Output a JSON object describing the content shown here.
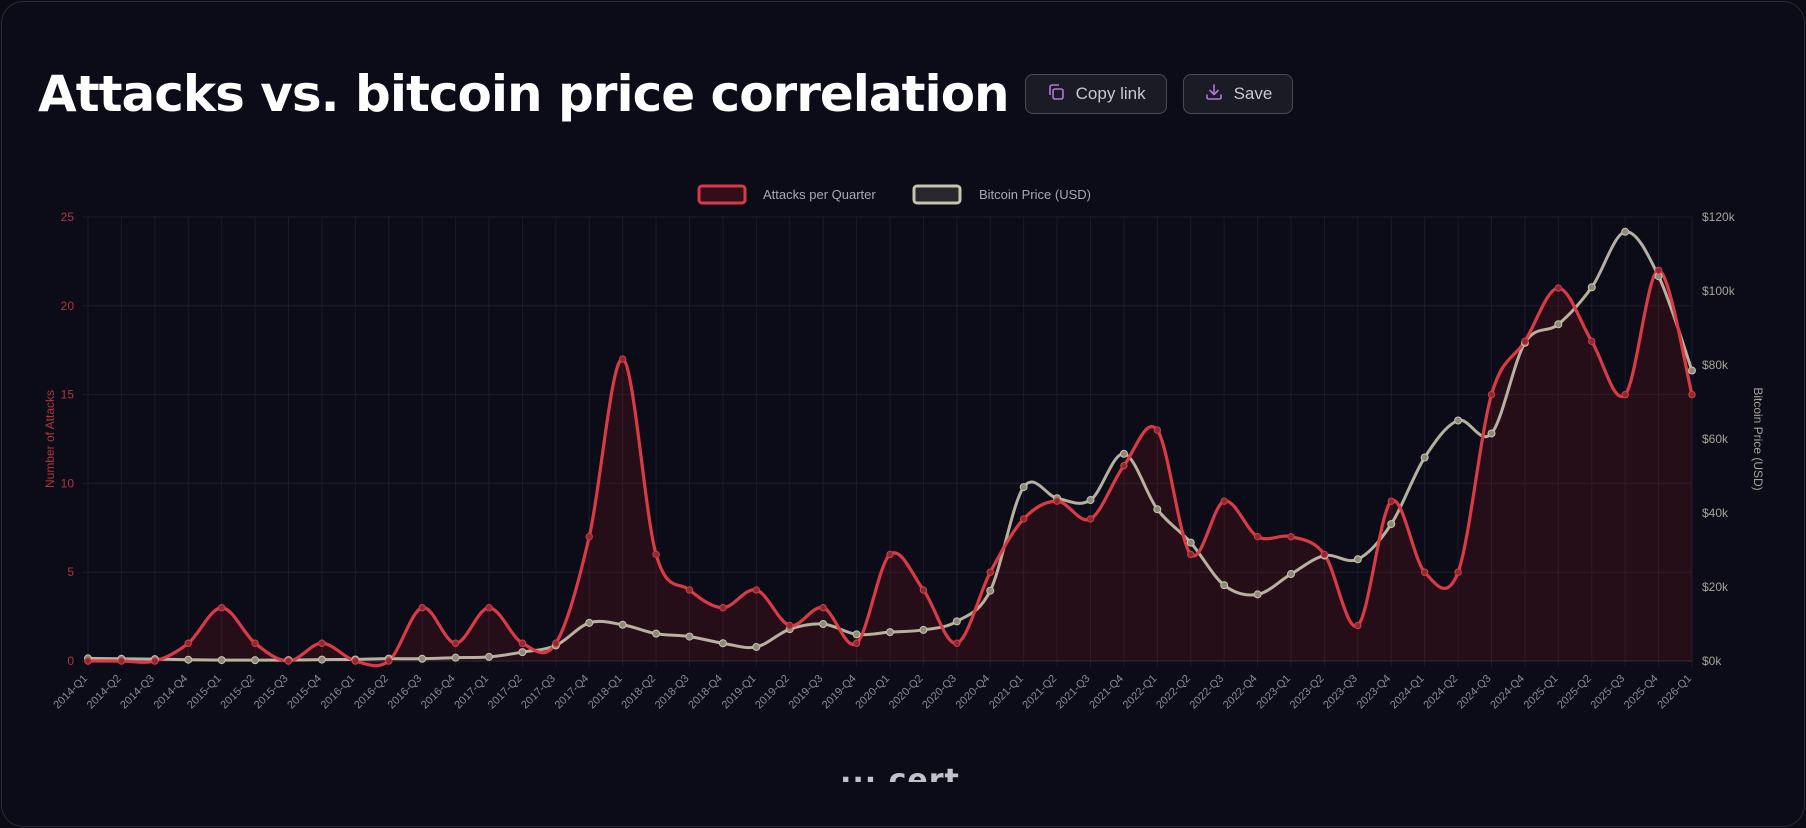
{
  "header": {
    "title": "Attacks vs. bitcoin price correlation",
    "copy_label": "Copy link",
    "save_label": "Save",
    "accent_icon_color": "#b07ad8"
  },
  "watermark": "··· cert",
  "chart_data": {
    "type": "line",
    "x": [
      "2014-Q1",
      "2014-Q2",
      "2014-Q3",
      "2014-Q4",
      "2015-Q1",
      "2015-Q2",
      "2015-Q3",
      "2015-Q4",
      "2016-Q1",
      "2016-Q2",
      "2016-Q3",
      "2016-Q4",
      "2017-Q1",
      "2017-Q2",
      "2017-Q3",
      "2017-Q4",
      "2018-Q1",
      "2018-Q2",
      "2018-Q3",
      "2018-Q4",
      "2019-Q1",
      "2019-Q2",
      "2019-Q3",
      "2019-Q4",
      "2020-Q1",
      "2020-Q2",
      "2020-Q3",
      "2020-Q4",
      "2021-Q1",
      "2021-Q2",
      "2021-Q3",
      "2021-Q4",
      "2022-Q1",
      "2022-Q2",
      "2022-Q3",
      "2022-Q4",
      "2023-Q1",
      "2023-Q2",
      "2023-Q3",
      "2023-Q4",
      "2024-Q1",
      "2024-Q2",
      "2024-Q3",
      "2024-Q4",
      "2025-Q1",
      "2025-Q2",
      "2025-Q3",
      "2025-Q4",
      "2026-Q1"
    ],
    "series": [
      {
        "name": "Attacks per Quarter",
        "axis": "left",
        "color": "#d93b46",
        "fill": "rgba(120,20,30,0.25)",
        "values": [
          0,
          0,
          0,
          1,
          3,
          1,
          0,
          1,
          0,
          0,
          3,
          1,
          3,
          1,
          1,
          7,
          17,
          6,
          4,
          3,
          4,
          2,
          3,
          1,
          6,
          4,
          1,
          5,
          8,
          9,
          8,
          11,
          13,
          6,
          9,
          7,
          7,
          6,
          2,
          9,
          5,
          5,
          15,
          18,
          21,
          18,
          15,
          22,
          15
        ]
      },
      {
        "name": "Bitcoin Price (USD)",
        "axis": "right",
        "color": "#c9c3ad",
        "values": [
          700,
          600,
          500,
          350,
          250,
          230,
          240,
          380,
          420,
          650,
          600,
          900,
          1100,
          2400,
          4200,
          10300,
          9800,
          7400,
          6600,
          4800,
          3800,
          8600,
          10000,
          7200,
          7800,
          8400,
          10700,
          19000,
          47000,
          44000,
          43500,
          56000,
          41000,
          32000,
          20500,
          18000,
          23500,
          28500,
          27500,
          37000,
          55000,
          65000,
          61500,
          86000,
          91000,
          101000,
          116000,
          104000,
          78500
        ]
      }
    ],
    "y_left": {
      "label": "Number of Attacks",
      "range": [
        0,
        25
      ],
      "ticks": [
        0,
        5,
        10,
        15,
        20,
        25
      ],
      "tick_labels": [
        "0",
        "5",
        "10",
        "15",
        "20",
        "25"
      ]
    },
    "y_right": {
      "label": "Bitcoin Price (USD)",
      "range": [
        0,
        120000
      ],
      "ticks": [
        0,
        20000,
        40000,
        60000,
        80000,
        100000,
        120000
      ],
      "tick_labels": [
        "$0k",
        "$20k",
        "$40k",
        "$60k",
        "$80k",
        "$100k",
        "$120k"
      ]
    },
    "grid": true,
    "legend_position": "top-center"
  }
}
